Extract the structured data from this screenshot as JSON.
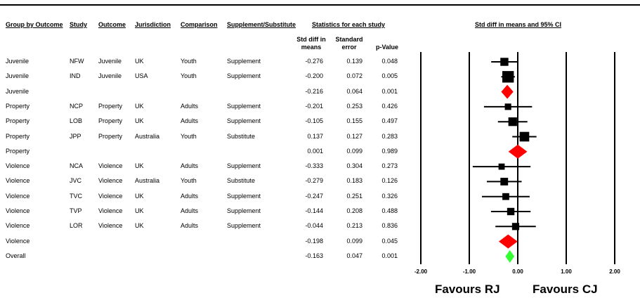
{
  "headers": {
    "group": "Group by Outcome",
    "study": "Study",
    "outcome": "Outcome",
    "jurisdiction": "Jurisdiction",
    "comparison": "Comparison",
    "supplement": "Supplement/Substitute",
    "stats": "Statistics for each study",
    "ci": "Std diff in means and 95% CI",
    "std_diff": "Std diff in means",
    "std_error": "Standard error",
    "p_value": "p-Value"
  },
  "rows": [
    {
      "group": "Juvenile",
      "study": "NFW",
      "outcome": "Juvenile",
      "jurisdiction": "UK",
      "comparison": "Youth",
      "supplement": "Supplement",
      "std_diff": "-0.276",
      "std_error": "0.139",
      "p_value": "0.048"
    },
    {
      "group": "Juvenile",
      "study": "IND",
      "outcome": "Juvenile",
      "jurisdiction": "USA",
      "comparison": "Youth",
      "supplement": "Supplement",
      "std_diff": "-0.200",
      "std_error": "0.072",
      "p_value": "0.005"
    },
    {
      "group": "Juvenile",
      "study": "",
      "outcome": "",
      "jurisdiction": "",
      "comparison": "",
      "supplement": "",
      "std_diff": "-0.216",
      "std_error": "0.064",
      "p_value": "0.001"
    },
    {
      "group": "Property",
      "study": "NCP",
      "outcome": "Property",
      "jurisdiction": "UK",
      "comparison": "Adults",
      "supplement": "Supplement",
      "std_diff": "-0.201",
      "std_error": "0.253",
      "p_value": "0.426"
    },
    {
      "group": "Property",
      "study": "LOB",
      "outcome": "Property",
      "jurisdiction": "UK",
      "comparison": "Adults",
      "supplement": "Supplement",
      "std_diff": "-0.105",
      "std_error": "0.155",
      "p_value": "0.497"
    },
    {
      "group": "Property",
      "study": "JPP",
      "outcome": "Property",
      "jurisdiction": "Australia",
      "comparison": "Youth",
      "supplement": "Substitute",
      "std_diff": "0.137",
      "std_error": "0.127",
      "p_value": "0.283"
    },
    {
      "group": "Property",
      "study": "",
      "outcome": "",
      "jurisdiction": "",
      "comparison": "",
      "supplement": "",
      "std_diff": "0.001",
      "std_error": "0.099",
      "p_value": "0.989"
    },
    {
      "group": "Violence",
      "study": "NCA",
      "outcome": "Violence",
      "jurisdiction": "UK",
      "comparison": "Adults",
      "supplement": "Supplement",
      "std_diff": "-0.333",
      "std_error": "0.304",
      "p_value": "0.273"
    },
    {
      "group": "Violence",
      "study": "JVC",
      "outcome": "Violence",
      "jurisdiction": "Australia",
      "comparison": "Youth",
      "supplement": "Substitute",
      "std_diff": "-0.279",
      "std_error": "0.183",
      "p_value": "0.126"
    },
    {
      "group": "Violence",
      "study": "TVC",
      "outcome": "Violence",
      "jurisdiction": "UK",
      "comparison": "Adults",
      "supplement": "Supplement",
      "std_diff": "-0.247",
      "std_error": "0.251",
      "p_value": "0.326"
    },
    {
      "group": "Violence",
      "study": "TVP",
      "outcome": "Violence",
      "jurisdiction": "UK",
      "comparison": "Adults",
      "supplement": "Supplement",
      "std_diff": "-0.144",
      "std_error": "0.208",
      "p_value": "0.488"
    },
    {
      "group": "Violence",
      "study": "LOR",
      "outcome": "Violence",
      "jurisdiction": "UK",
      "comparison": "Adults",
      "supplement": "Supplement",
      "std_diff": "-0.044",
      "std_error": "0.213",
      "p_value": "0.836"
    },
    {
      "group": "Violence",
      "study": "",
      "outcome": "",
      "jurisdiction": "",
      "comparison": "",
      "supplement": "",
      "std_diff": "-0.198",
      "std_error": "0.099",
      "p_value": "0.045"
    },
    {
      "group": "Overall",
      "study": "",
      "outcome": "",
      "jurisdiction": "",
      "comparison": "",
      "supplement": "",
      "std_diff": "-0.163",
      "std_error": "0.047",
      "p_value": "0.001"
    }
  ],
  "chart_data": {
    "type": "forest",
    "title": "Std diff in means and 95% CI",
    "xlim": [
      -2.0,
      2.0
    ],
    "ticks": [
      -2.0,
      -1.0,
      0.0,
      1.0,
      2.0
    ],
    "tick_labels": [
      "-2.00",
      "-1.00",
      "0.00",
      "1.00",
      "2.00"
    ],
    "x_labels": {
      "left": "Favours RJ",
      "right": "Favours CJ"
    },
    "points": [
      {
        "study": "NFW",
        "kind": "study",
        "estimate": -0.276,
        "ci_low": -0.548,
        "ci_high": -0.004,
        "weight": 0.15
      },
      {
        "study": "IND",
        "kind": "study",
        "estimate": -0.2,
        "ci_low": -0.341,
        "ci_high": -0.059,
        "weight": 0.55
      },
      {
        "study": "Juvenile",
        "kind": "subtotal",
        "estimate": -0.216,
        "ci_low": -0.341,
        "ci_high": -0.091,
        "color": "#ff0000"
      },
      {
        "study": "NCP",
        "kind": "study",
        "estimate": -0.201,
        "ci_low": -0.697,
        "ci_high": 0.295,
        "weight": 0.05
      },
      {
        "study": "LOB",
        "kind": "study",
        "estimate": -0.105,
        "ci_low": -0.409,
        "ci_high": 0.199,
        "weight": 0.2
      },
      {
        "study": "JPP",
        "kind": "study",
        "estimate": 0.137,
        "ci_low": -0.112,
        "ci_high": 0.386,
        "weight": 0.3
      },
      {
        "study": "Property",
        "kind": "subtotal",
        "estimate": 0.001,
        "ci_low": -0.193,
        "ci_high": 0.195,
        "color": "#ff0000"
      },
      {
        "study": "NCA",
        "kind": "study",
        "estimate": -0.333,
        "ci_low": -0.929,
        "ci_high": 0.263,
        "weight": 0.04
      },
      {
        "study": "JVC",
        "kind": "study",
        "estimate": -0.279,
        "ci_low": -0.638,
        "ci_high": 0.08,
        "weight": 0.12
      },
      {
        "study": "TVC",
        "kind": "study",
        "estimate": -0.247,
        "ci_low": -0.739,
        "ci_high": 0.245,
        "weight": 0.07
      },
      {
        "study": "TVP",
        "kind": "study",
        "estimate": -0.144,
        "ci_low": -0.552,
        "ci_high": 0.264,
        "weight": 0.1
      },
      {
        "study": "LOR",
        "kind": "study",
        "estimate": -0.044,
        "ci_low": -0.461,
        "ci_high": 0.373,
        "weight": 0.09
      },
      {
        "study": "Violence",
        "kind": "subtotal",
        "estimate": -0.198,
        "ci_low": -0.392,
        "ci_high": -0.004,
        "color": "#ff0000"
      },
      {
        "study": "Overall",
        "kind": "overall",
        "estimate": -0.163,
        "ci_low": -0.255,
        "ci_high": -0.071,
        "color": "#33ff33"
      }
    ]
  }
}
